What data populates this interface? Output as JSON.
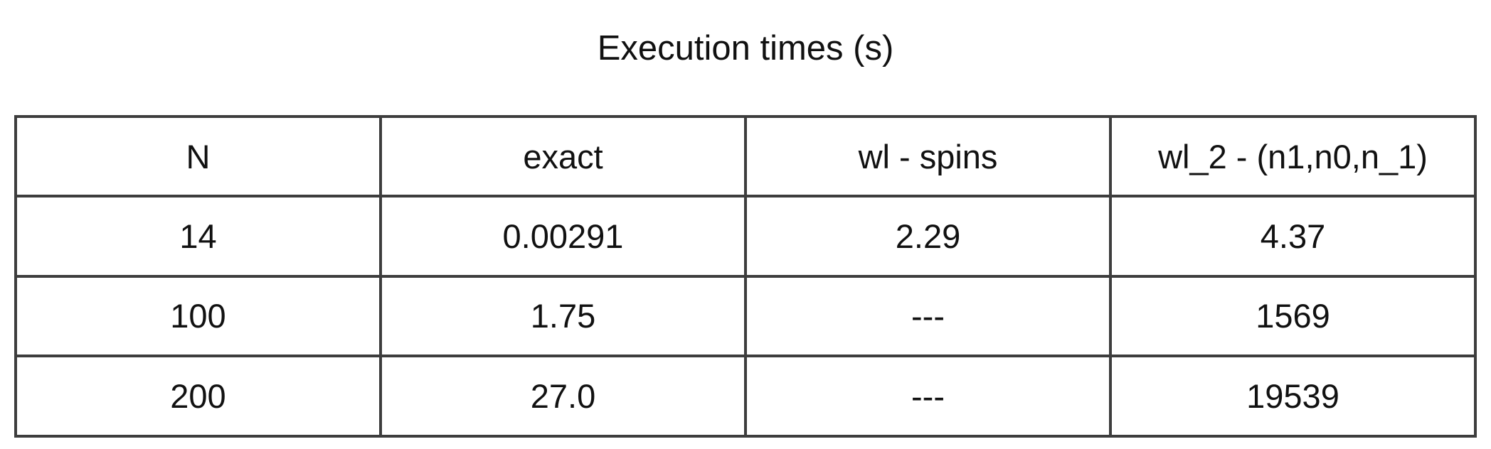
{
  "chart_data": {
    "type": "table",
    "title": "Execution times (s)",
    "columns": [
      "N",
      "exact",
      "wl - spins",
      "wl_2 - (n1,n0,n_1)"
    ],
    "rows": [
      [
        "14",
        "0.00291",
        "2.29",
        "4.37"
      ],
      [
        "100",
        "1.75",
        "---",
        "1569"
      ],
      [
        "200",
        "27.0",
        "---",
        "19539"
      ]
    ]
  }
}
